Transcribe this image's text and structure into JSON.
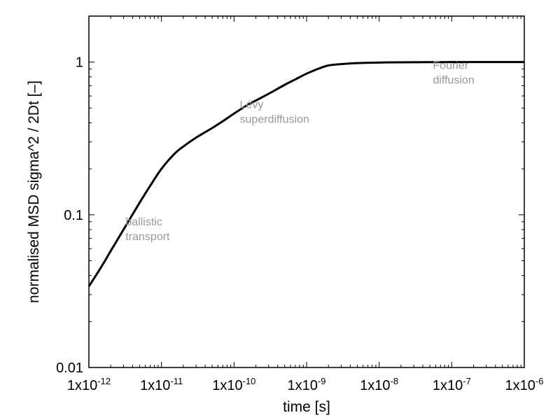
{
  "chart_data": {
    "type": "line",
    "title": "",
    "xlabel": "time [s]",
    "ylabel": "normalised MSD sigma^2 / 2Dt [–]",
    "x_scale": "log",
    "y_scale": "log",
    "xlim": [
      1e-12,
      1e-06
    ],
    "ylim": [
      0.01,
      2
    ],
    "grid": false,
    "legend": "none",
    "x_ticks": [
      {
        "value": 1e-12,
        "base": "1x10",
        "exp": "-12"
      },
      {
        "value": 1e-11,
        "base": "1x10",
        "exp": "-11"
      },
      {
        "value": 1e-10,
        "base": "1x10",
        "exp": "-10"
      },
      {
        "value": 1e-09,
        "base": "1x10",
        "exp": "-9"
      },
      {
        "value": 1e-08,
        "base": "1x10",
        "exp": "-8"
      },
      {
        "value": 1e-07,
        "base": "1x10",
        "exp": "-7"
      },
      {
        "value": 1e-06,
        "base": "1x10",
        "exp": "-6"
      }
    ],
    "y_ticks": [
      {
        "value": 0.01,
        "label": "0.01"
      },
      {
        "value": 0.1,
        "label": "0.1"
      },
      {
        "value": 1,
        "label": "1"
      }
    ],
    "series": [
      {
        "color": "#000000",
        "x": [
          1e-12,
          1.5e-12,
          2e-12,
          3e-12,
          5e-12,
          7e-12,
          1e-11,
          1.5e-11,
          2e-11,
          3e-11,
          5e-11,
          7e-11,
          1e-10,
          1.5e-10,
          2e-10,
          3e-10,
          5e-10,
          7e-10,
          1e-09,
          1.5e-09,
          2e-09,
          3e-09,
          5e-09,
          1e-08,
          2e-08,
          5e-08,
          1e-07,
          3e-07,
          1e-06
        ],
        "y": [
          0.034,
          0.046,
          0.058,
          0.08,
          0.12,
          0.155,
          0.2,
          0.25,
          0.28,
          0.32,
          0.37,
          0.41,
          0.46,
          0.52,
          0.56,
          0.62,
          0.71,
          0.77,
          0.84,
          0.91,
          0.95,
          0.97,
          0.985,
          0.993,
          0.997,
          0.999,
          1.0,
          1.0,
          1.0
        ]
      }
    ],
    "annotations": [
      {
        "lines": [
          "ballistic",
          "transport"
        ],
        "x": 3.2e-12,
        "y": 0.085,
        "color": "#999999"
      },
      {
        "lines": [
          "Lévy",
          "superdiffusion"
        ],
        "x": 1.2e-10,
        "y": 0.5,
        "color": "#999999"
      },
      {
        "lines": [
          "Fourier",
          "diffusion"
        ],
        "x": 5.5e-08,
        "y": 0.9,
        "color": "#999999"
      }
    ]
  }
}
